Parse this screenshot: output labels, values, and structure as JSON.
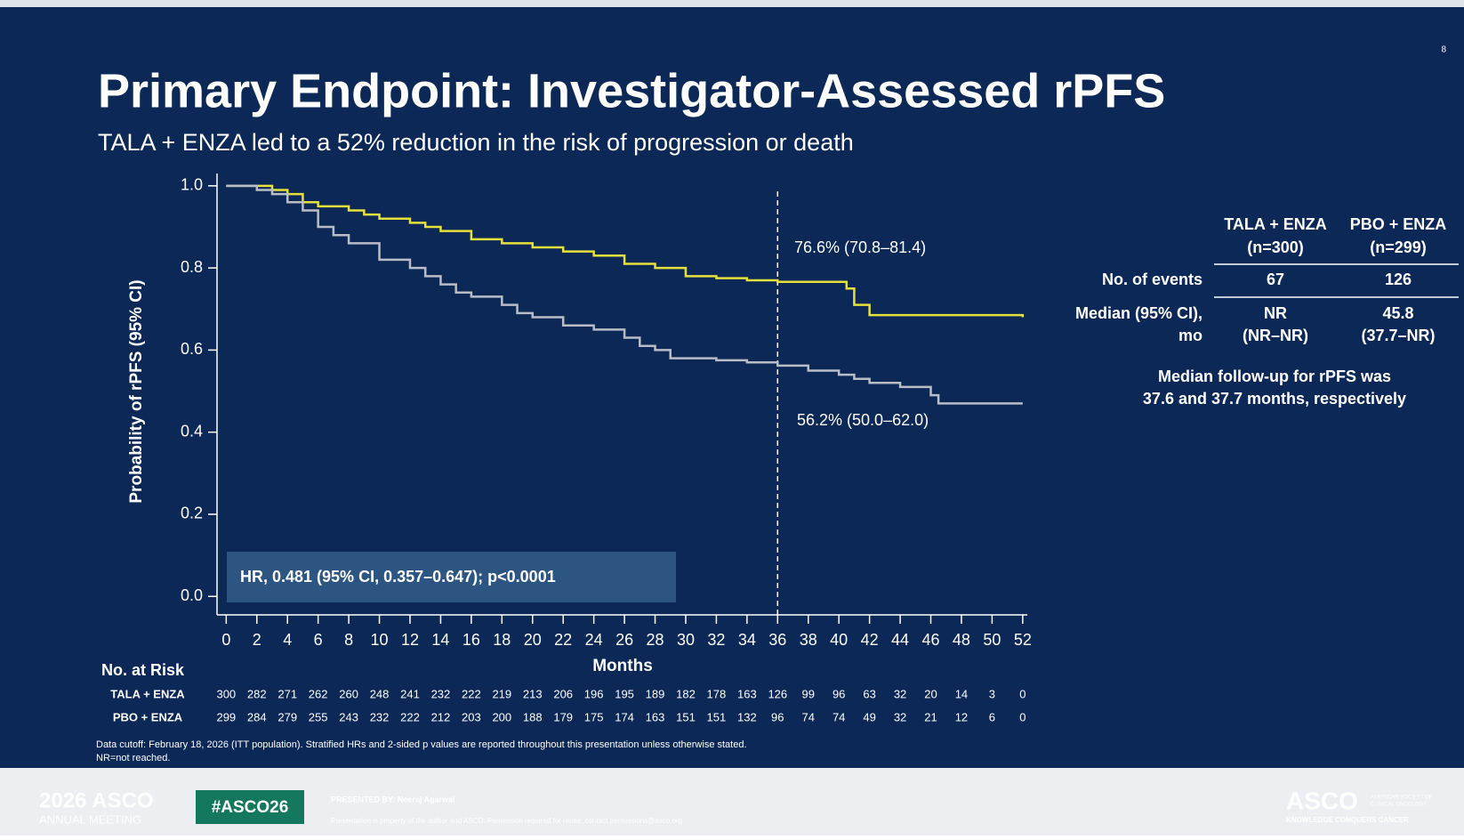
{
  "page_number": "8",
  "title": "Primary Endpoint: Investigator-Assessed rPFS",
  "subtitle": "TALA + ENZA led to a 52% reduction in the risk of progression or death",
  "chart_data": {
    "type": "line",
    "step": true,
    "ylabel": "Probability of rPFS (95% CI)",
    "xlabel": "Months",
    "xlim": [
      -0.6,
      52.3
    ],
    "ylim": [
      -0.045,
      1.03
    ],
    "xticks": [
      0,
      2,
      4,
      6,
      8,
      10,
      12,
      14,
      16,
      18,
      20,
      22,
      24,
      26,
      28,
      30,
      32,
      34,
      36,
      38,
      40,
      42,
      44,
      46,
      48,
      50,
      52
    ],
    "yticks": [
      {
        "value": 0,
        "label": "0.0"
      },
      {
        "value": 0.2,
        "label": "0.2"
      },
      {
        "value": 0.4,
        "label": "0.4"
      },
      {
        "value": 0.6,
        "label": "0.6"
      },
      {
        "value": 0.8,
        "label": "0.8"
      },
      {
        "value": 1,
        "label": "1.0"
      }
    ],
    "reference_x": 36,
    "series": [
      {
        "name": "TALA + ENZA",
        "color": "#e6e13a",
        "x": [
          0,
          2,
          3,
          4,
          5,
          6,
          8,
          9,
          10,
          12,
          13,
          14,
          16,
          18,
          20,
          22,
          24,
          26,
          28,
          30,
          32,
          34,
          36,
          40.5,
          41,
          42,
          52
        ],
        "values": [
          1,
          1,
          0.99,
          0.98,
          0.96,
          0.95,
          0.94,
          0.93,
          0.92,
          0.91,
          0.9,
          0.89,
          0.87,
          0.86,
          0.85,
          0.84,
          0.83,
          0.81,
          0.8,
          0.78,
          0.775,
          0.77,
          0.766,
          0.75,
          0.71,
          0.685,
          0.68
        ]
      },
      {
        "name": "PBO + ENZA",
        "color": "#b9bdc6",
        "x": [
          0,
          2,
          3,
          4,
          5,
          6,
          7,
          8,
          10,
          12,
          13,
          14,
          15,
          16,
          18,
          19,
          20,
          22,
          24,
          26,
          27,
          28,
          29,
          32,
          34,
          36,
          38,
          40,
          41,
          42,
          44,
          46,
          46.5,
          52
        ],
        "values": [
          1,
          0.99,
          0.98,
          0.96,
          0.94,
          0.9,
          0.88,
          0.86,
          0.82,
          0.8,
          0.78,
          0.76,
          0.74,
          0.73,
          0.71,
          0.69,
          0.68,
          0.66,
          0.65,
          0.63,
          0.61,
          0.6,
          0.58,
          0.575,
          0.57,
          0.562,
          0.55,
          0.54,
          0.53,
          0.52,
          0.51,
          0.49,
          0.47,
          0.47
        ]
      }
    ],
    "annotations": [
      "76.6% (70.8–81.4)",
      "56.2% (50.0–62.0)",
      "HR, 0.481 (95% CI, 0.357–0.647); p<0.0001"
    ],
    "at_risk": {
      "title": "No. at Risk",
      "rows": [
        {
          "name": "TALA + ENZA",
          "values": [
            300,
            282,
            271,
            262,
            260,
            248,
            241,
            232,
            222,
            219,
            213,
            206,
            196,
            195,
            189,
            182,
            178,
            163,
            126,
            99,
            96,
            63,
            32,
            20,
            14,
            3,
            0
          ]
        },
        {
          "name": "PBO + ENZA",
          "values": [
            299,
            284,
            279,
            255,
            243,
            232,
            222,
            212,
            203,
            200,
            188,
            179,
            175,
            174,
            163,
            151,
            151,
            132,
            96,
            74,
            74,
            49,
            32,
            21,
            12,
            6,
            0
          ]
        }
      ]
    }
  },
  "summary_table": {
    "headers": [
      [
        "TALA + ENZA",
        "(n=300)"
      ],
      [
        "PBO + ENZA",
        "(n=299)"
      ]
    ],
    "rows": [
      {
        "label": [
          "No. of events"
        ],
        "cells": [
          [
            "67"
          ],
          [
            "126"
          ]
        ]
      },
      {
        "label": [
          "Median (95% CI),",
          "mo"
        ],
        "cells": [
          [
            "NR",
            "(NR–NR)"
          ],
          [
            "45.8",
            "(37.7–NR)"
          ]
        ]
      }
    ],
    "note": [
      "Median follow-up for rPFS was",
      "37.6 and 37.7 months, respectively"
    ]
  },
  "footnotes": [
    "Data cutoff: February 18, 2026 (ITT population). Stratified HRs and 2-sided p values are reported throughout this presentation unless otherwise stated.",
    "NR=not reached."
  ],
  "footer": {
    "meeting": [
      "2026 ASCO",
      "ANNUAL MEETING"
    ],
    "hashtag": "#ASCO26",
    "presenter": "PRESENTED BY: Neeraj Agarwal",
    "notice": "Presentation is property of the author and ASCO. Permission required for reuse; contact permissions@asco.org.",
    "logo": "ASCO",
    "society": [
      "AMERICAN SOCIETY OF",
      "CLINICAL ONCOLOGY"
    ],
    "tagline": "KNOWLEDGE CONQUERS CANCER"
  }
}
